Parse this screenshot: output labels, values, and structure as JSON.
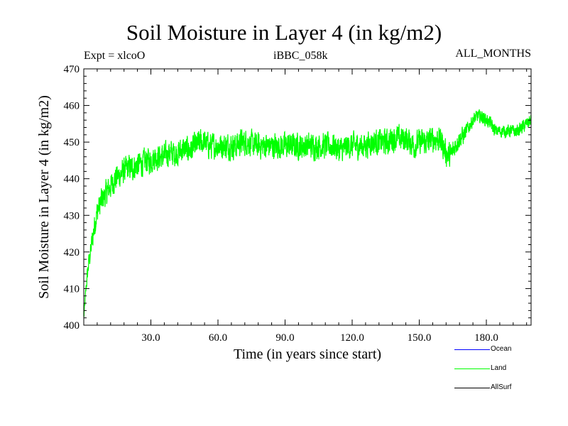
{
  "header": {
    "title": "Soil Moisture in Layer 4 (in kg/m2)",
    "experiment": "Expt = xlcoO",
    "run_id": "iBBC_058k",
    "months": "ALL_MONTHS"
  },
  "legend": [
    {
      "label": "Ocean",
      "color": "#0000ff"
    },
    {
      "label": "Land",
      "color": "#00ff00"
    },
    {
      "label": "AllSurf",
      "color": "#000000"
    }
  ],
  "chart_data": {
    "type": "line",
    "title": "Soil Moisture in Layer 4 (in kg/m2)",
    "xlabel": "Time (in years since start)",
    "ylabel": "Soil Moisture in Layer 4 (in kg/m2)",
    "xlim": [
      0,
      200
    ],
    "ylim": [
      400,
      470
    ],
    "xticks": [
      30,
      60,
      90,
      120,
      150,
      180
    ],
    "xtick_labels": [
      "30.0",
      "60.0",
      "90.0",
      "120.0",
      "150.0",
      "180.0"
    ],
    "yticks": [
      400,
      410,
      420,
      430,
      440,
      450,
      460,
      470
    ],
    "ytick_labels": [
      "400",
      "410",
      "420",
      "430",
      "440",
      "450",
      "460",
      "470"
    ],
    "series": [
      {
        "name": "Land",
        "color": "#00ff00",
        "x": [
          0,
          1,
          2,
          3,
          4,
          5,
          6,
          8,
          10,
          12,
          14,
          16,
          18,
          20,
          22,
          24,
          26,
          28,
          30,
          32,
          34,
          36,
          38,
          40,
          42,
          44,
          46,
          48,
          50,
          52,
          54,
          56,
          58,
          60,
          62,
          64,
          66,
          68,
          70,
          72,
          74,
          76,
          78,
          80,
          82,
          84,
          86,
          88,
          90,
          92,
          94,
          96,
          98,
          100,
          102,
          104,
          106,
          108,
          110,
          112,
          114,
          116,
          118,
          120,
          122,
          124,
          126,
          128,
          130,
          132,
          134,
          136,
          138,
          140,
          142,
          144,
          146,
          148,
          150,
          152,
          154,
          156,
          158,
          160,
          162,
          164,
          166,
          168,
          170,
          172,
          174,
          176,
          178,
          180,
          182,
          184,
          186,
          188,
          190,
          192,
          194,
          196,
          198,
          200
        ],
        "values": [
          402,
          410,
          416,
          420,
          424,
          428,
          431,
          434,
          436,
          438,
          440,
          441,
          442,
          443,
          443,
          444,
          444,
          445,
          445,
          446,
          446,
          446,
          447,
          447,
          447,
          448,
          448,
          448,
          449,
          450,
          450,
          449,
          449,
          449,
          449,
          449,
          449,
          449,
          450,
          450,
          450,
          449,
          449,
          449,
          449,
          449,
          449,
          449,
          449,
          449,
          449,
          449,
          449,
          449,
          449,
          449,
          449,
          449,
          449,
          449,
          448,
          448,
          449,
          449,
          449,
          449,
          449,
          450,
          450,
          450,
          450,
          450,
          451,
          451,
          451,
          451,
          450,
          449,
          450,
          450,
          450,
          451,
          451,
          450,
          447,
          446,
          449,
          451,
          452,
          454,
          456,
          457,
          457,
          456,
          455,
          453,
          453,
          453,
          453,
          453,
          453,
          454,
          455,
          456
        ],
        "noise_amplitude": [
          1,
          2,
          3,
          3,
          4,
          4,
          4,
          4,
          4,
          4,
          4,
          4,
          4,
          4,
          4,
          4,
          4,
          4,
          4,
          4,
          4,
          4,
          4,
          4,
          4,
          4,
          4,
          4,
          4,
          4,
          4,
          4,
          4,
          4,
          4,
          4,
          4,
          4,
          4,
          4,
          4,
          4,
          4,
          4,
          4,
          4,
          4,
          4,
          4,
          4,
          4,
          4,
          4,
          4,
          4,
          4,
          4,
          4,
          4,
          4,
          4,
          4,
          4,
          4,
          4,
          4,
          4,
          4,
          4,
          4,
          4,
          4,
          4,
          4,
          4,
          4,
          4,
          4,
          4,
          4,
          4,
          4,
          4,
          4,
          4,
          4,
          3,
          3,
          3,
          2,
          2,
          2,
          2,
          2,
          2,
          2,
          2,
          2,
          2,
          2,
          2,
          2,
          2,
          2
        ]
      },
      {
        "name": "Ocean",
        "color": "#0000ff",
        "x": [],
        "values": []
      },
      {
        "name": "AllSurf",
        "color": "#000000",
        "x": [],
        "values": []
      }
    ]
  }
}
